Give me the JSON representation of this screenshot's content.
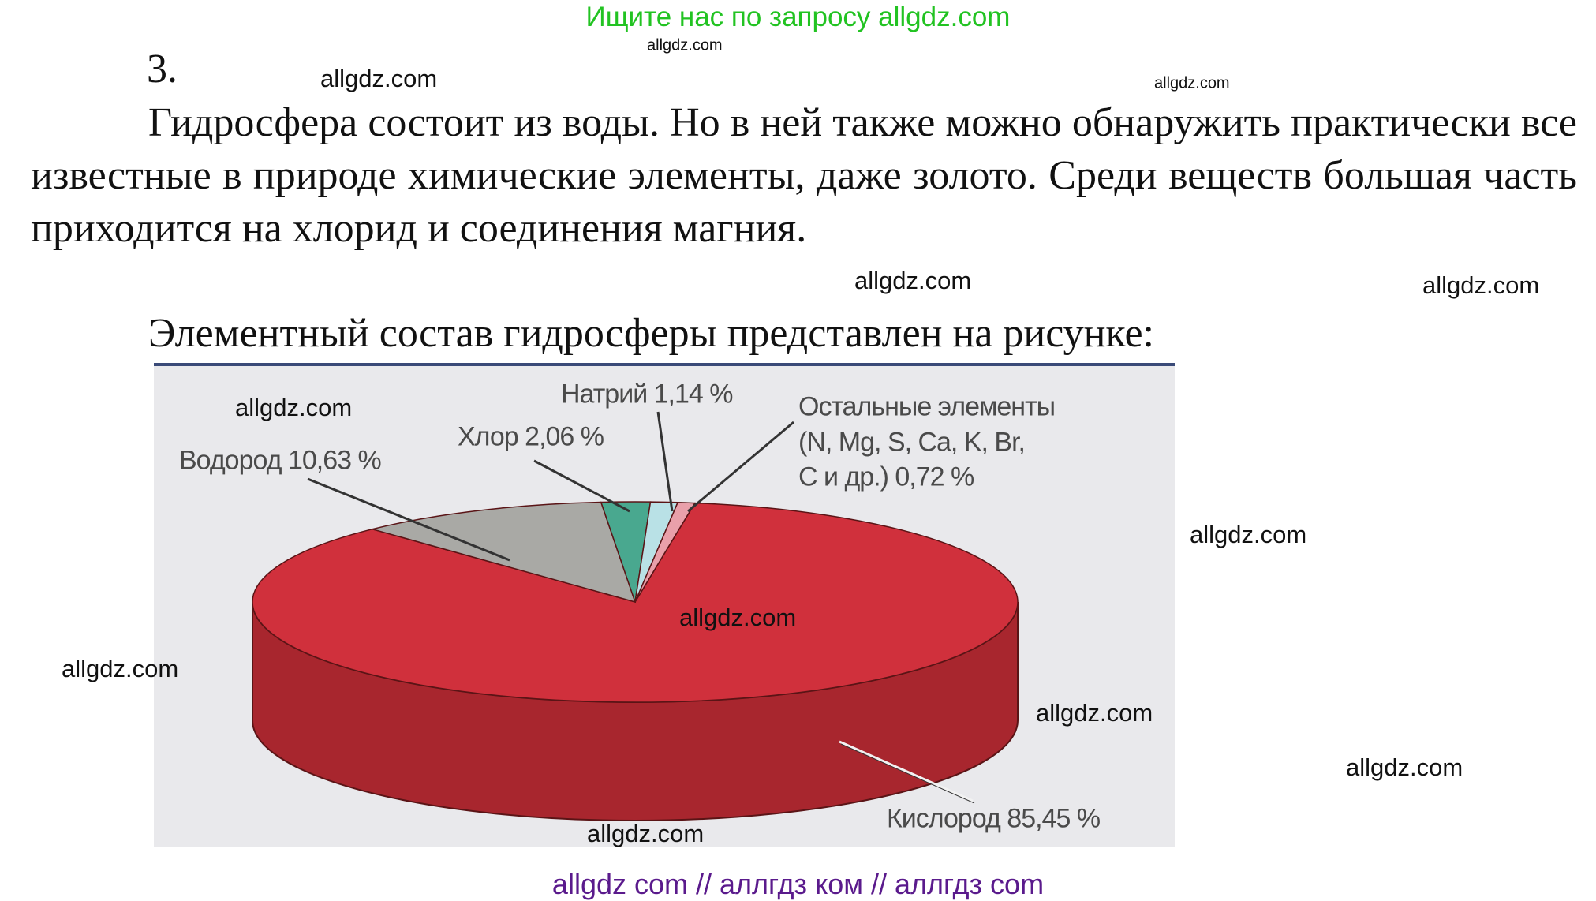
{
  "header": {
    "promo": "Ищите нас по запросу allgdz.com"
  },
  "task": {
    "number": "3.",
    "paragraph": "Гидросфера состоит из воды. Но в ней также можно обнаружить практически все известные в природе химические элементы, даже золото. Среди веществ большая часть приходится на хлорид и соединения магния.",
    "caption": "Элементный состав гидросферы представлен на рисунке:"
  },
  "chart_data": {
    "type": "pie",
    "style": "3d",
    "slices": [
      {
        "name": "Кислород",
        "value": 85.45,
        "label": "Кислород 85,45 %",
        "color": "#d0303c"
      },
      {
        "name": "Водород",
        "value": 10.63,
        "label": "Водород 10,63 %",
        "color": "#a9a9a5"
      },
      {
        "name": "Хлор",
        "value": 2.06,
        "label": "Хлор 2,06 %",
        "color": "#49a88f"
      },
      {
        "name": "Натрий",
        "value": 1.14,
        "label": "Натрий 1,14 %",
        "color": "#b9e1e6"
      },
      {
        "name": "Остальные элементы",
        "value": 0.72,
        "label_lines": [
          "Остальные элементы",
          "(N, Mg, S, Ca, K, Br,",
          "C и др.) 0,72 %"
        ],
        "color": "#e9a0aa"
      }
    ]
  },
  "watermarks": [
    "allgdz.com",
    "allgdz.com",
    "allgdz.com",
    "allgdz.com",
    "allgdz.com",
    "allgdz.com",
    "allgdz.com",
    "allgdz.com",
    "allgdz.com",
    "allgdz.com",
    "allgdz.com",
    "allgdz.com"
  ],
  "footer": {
    "text": "allgdz com  //  аллгдз ком  //  аллгдз com"
  }
}
